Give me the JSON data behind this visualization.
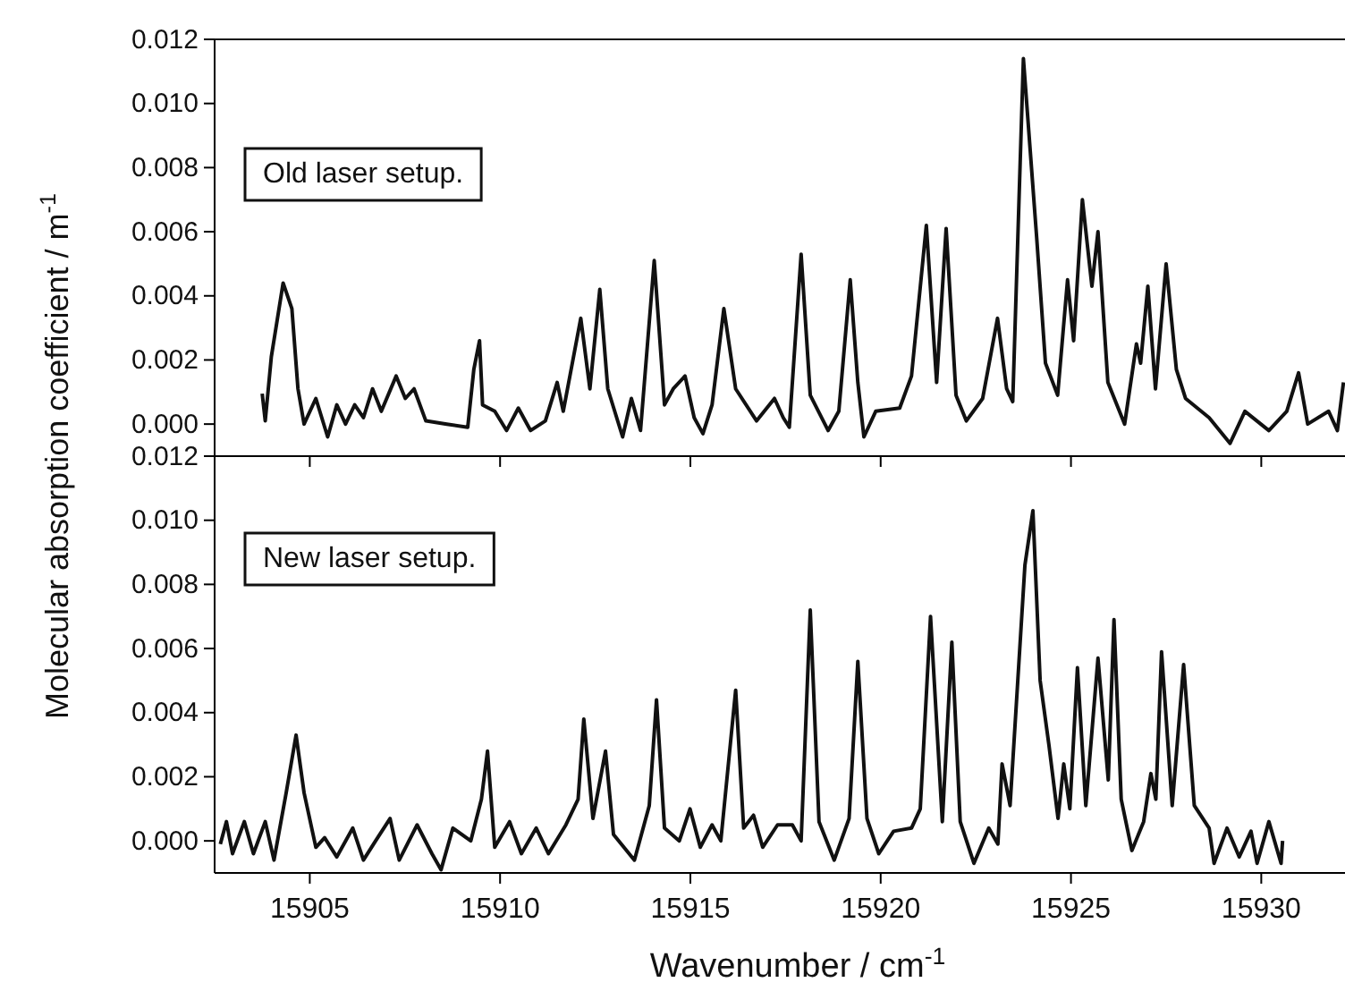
{
  "chart_data": [
    {
      "type": "line",
      "ylabel": "Molecular absorption coefficient / m$^{-1}$",
      "annotations": [
        "Old laser setup."
      ],
      "tick_labels": "y",
      "xlim": [
        15902.5,
        15932.2
      ],
      "xticks": [
        15905,
        15910,
        15915,
        15920,
        15925,
        15930
      ],
      "ylim": [
        -0.001,
        0.012
      ],
      "yticks": [
        {
          "value": 0,
          "label": "0.000"
        },
        {
          "value": 0.002,
          "label": "0.002"
        },
        {
          "value": 0.004,
          "label": "0.004"
        },
        {
          "value": 0.006,
          "label": "0.006"
        },
        {
          "value": 0.008,
          "label": "0.008"
        },
        {
          "value": 0.01,
          "label": "0.010"
        },
        {
          "value": 0.012,
          "label": "0.012"
        }
      ],
      "series": [
        {
          "color": "#111111",
          "x": [
            15903.75,
            15903.83,
            15903.99,
            15904.3,
            15904.53,
            15904.69,
            15904.85,
            15905.16,
            15905.47,
            15905.71,
            15905.94,
            15906.18,
            15906.41,
            15906.65,
            15906.88,
            15907.27,
            15907.51,
            15907.74,
            15908.05,
            15908.6,
            15909.15,
            15909.31,
            15909.46,
            15909.54,
            15909.86,
            15910.17,
            15910.48,
            15910.8,
            15911.19,
            15911.5,
            15911.66,
            15912.12,
            15912.36,
            15912.62,
            15912.83,
            15913.22,
            15913.45,
            15913.69,
            15914.05,
            15914.32,
            15914.55,
            15914.86,
            15915.1,
            15915.33,
            15915.57,
            15915.88,
            15916.19,
            15916.74,
            15917.21,
            15917.44,
            15917.6,
            15917.91,
            15918.15,
            15918.62,
            15918.9,
            15919.2,
            15919.4,
            15919.56,
            15919.87,
            15920.5,
            15920.81,
            15921.2,
            15921.47,
            15921.72,
            15921.98,
            15922.25,
            15922.68,
            15923.07,
            15923.31,
            15923.47,
            15923.75,
            15924.1,
            15924.33,
            15924.65,
            15924.91,
            15925.07,
            15925.3,
            15925.55,
            15925.71,
            15925.97,
            15926.41,
            15926.72,
            15926.83,
            15927.02,
            15927.22,
            15927.5,
            15927.77,
            15928.01,
            15928.63,
            15929.18,
            15929.57,
            15930.2,
            15930.67,
            15930.98,
            15931.22,
            15931.77,
            15932.0,
            15932.16
          ],
          "values": [
            0.00095,
            0.0001,
            0.0021,
            0.0044,
            0.0036,
            0.0011,
            0.0,
            0.0008,
            -0.0004,
            0.0006,
            0.0,
            0.0006,
            0.0002,
            0.0011,
            0.0004,
            0.0015,
            0.0008,
            0.0011,
            0.0001,
            0.0,
            -0.0001,
            0.0017,
            0.0026,
            0.0006,
            0.0004,
            -0.0002,
            0.0005,
            -0.0002,
            0.0001,
            0.0013,
            0.0004,
            0.0033,
            0.0011,
            0.0042,
            0.0011,
            -0.0004,
            0.0008,
            -0.0002,
            0.0051,
            0.0006,
            0.0011,
            0.0015,
            0.0002,
            -0.0003,
            0.0006,
            0.0036,
            0.0011,
            0.0001,
            0.0008,
            0.0002,
            -0.0001,
            0.0053,
            0.0009,
            -0.0002,
            0.0004,
            0.0045,
            0.0013,
            -0.0004,
            0.0004,
            0.0005,
            0.0015,
            0.0062,
            0.0013,
            0.0061,
            0.0009,
            0.0001,
            0.0008,
            0.0033,
            0.0011,
            0.0007,
            0.0114,
            0.0058,
            0.0019,
            0.0009,
            0.0045,
            0.0026,
            0.007,
            0.0043,
            0.006,
            0.0013,
            0.0,
            0.0025,
            0.0019,
            0.0043,
            0.0011,
            0.005,
            0.0017,
            0.0008,
            0.0002,
            -0.0006,
            0.0004,
            -0.0002,
            0.0004,
            0.0016,
            0.0,
            0.0004,
            -0.0002,
            0.0013
          ]
        }
      ]
    },
    {
      "type": "line",
      "xlabel": "Wavenumber  /  cm$^{-1}$",
      "annotations": [
        "New laser setup."
      ],
      "xlim": [
        15902.5,
        15932.2
      ],
      "xticks": [
        15905,
        15910,
        15915,
        15920,
        15925,
        15930
      ],
      "ylim": [
        -0.001,
        0.012
      ],
      "yticks": [
        {
          "value": 0,
          "label": "0.000"
        },
        {
          "value": 0.002,
          "label": "0.002"
        },
        {
          "value": 0.004,
          "label": "0.004"
        },
        {
          "value": 0.006,
          "label": "0.006"
        },
        {
          "value": 0.008,
          "label": "0.008"
        },
        {
          "value": 0.01,
          "label": "0.010"
        },
        {
          "value": 0.012,
          "label": "0.012"
        }
      ],
      "series": [
        {
          "color": "#111111",
          "x": [
            15902.65,
            15902.81,
            15902.97,
            15903.28,
            15903.52,
            15903.83,
            15904.06,
            15904.38,
            15904.64,
            15904.85,
            15905.16,
            15905.39,
            15905.71,
            15906.13,
            15906.41,
            15906.73,
            15907.11,
            15907.35,
            15907.82,
            15908.21,
            15908.45,
            15908.76,
            15909.23,
            15909.51,
            15909.67,
            15909.86,
            15910.25,
            15910.56,
            15910.95,
            15911.27,
            15911.73,
            15912.05,
            15912.2,
            15912.44,
            15912.77,
            15912.98,
            15913.53,
            15913.92,
            15914.11,
            15914.32,
            15914.71,
            15914.99,
            15915.26,
            15915.57,
            15915.8,
            15916.19,
            15916.4,
            15916.66,
            15916.9,
            15917.29,
            15917.68,
            15917.91,
            15918.15,
            15918.38,
            15918.78,
            15919.17,
            15919.4,
            15919.64,
            15919.95,
            15920.34,
            15920.81,
            15921.04,
            15921.31,
            15921.62,
            15921.87,
            15922.09,
            15922.45,
            15922.84,
            15923.08,
            15923.19,
            15923.4,
            15923.79,
            15924.0,
            15924.19,
            15924.42,
            15924.66,
            15924.81,
            15924.97,
            15925.17,
            15925.39,
            15925.71,
            15925.98,
            15926.13,
            15926.32,
            15926.6,
            15926.91,
            15927.1,
            15927.23,
            15927.38,
            15927.66,
            15927.96,
            15928.24,
            15928.63,
            15928.76,
            15929.1,
            15929.42,
            15929.73,
            15929.89,
            15930.2,
            15930.52,
            15930.56
          ],
          "values": [
            -0.0001,
            0.0006,
            -0.0004,
            0.0006,
            -0.0004,
            0.0006,
            -0.0006,
            0.0015,
            0.0033,
            0.0015,
            -0.0002,
            0.0001,
            -0.0005,
            0.0004,
            -0.0006,
            0.0,
            0.0007,
            -0.0006,
            0.0005,
            -0.0004,
            -0.0009,
            0.0004,
            0.0,
            0.0013,
            0.0028,
            -0.0002,
            0.0006,
            -0.0004,
            0.0004,
            -0.0004,
            0.0005,
            0.0013,
            0.0038,
            0.0007,
            0.0028,
            0.0002,
            -0.0006,
            0.0011,
            0.0044,
            0.0004,
            0.0,
            0.001,
            -0.0002,
            0.0005,
            0.0,
            0.0047,
            0.0004,
            0.0008,
            -0.0002,
            0.0005,
            0.0005,
            0.0,
            0.0072,
            0.0006,
            -0.0006,
            0.0007,
            0.0056,
            0.0007,
            -0.0004,
            0.0003,
            0.0004,
            0.001,
            0.007,
            0.0006,
            0.0062,
            0.0006,
            -0.0007,
            0.0004,
            -0.0001,
            0.0024,
            0.0011,
            0.0086,
            0.0103,
            0.005,
            0.003,
            0.0007,
            0.0024,
            0.001,
            0.0054,
            0.0011,
            0.0057,
            0.0019,
            0.0069,
            0.0013,
            -0.0003,
            0.0006,
            0.0021,
            0.0013,
            0.0059,
            0.0011,
            0.0055,
            0.0011,
            0.0004,
            -0.0007,
            0.0004,
            -0.0005,
            0.0003,
            -0.0007,
            0.0006,
            -0.0007,
            0.0
          ]
        }
      ]
    }
  ]
}
